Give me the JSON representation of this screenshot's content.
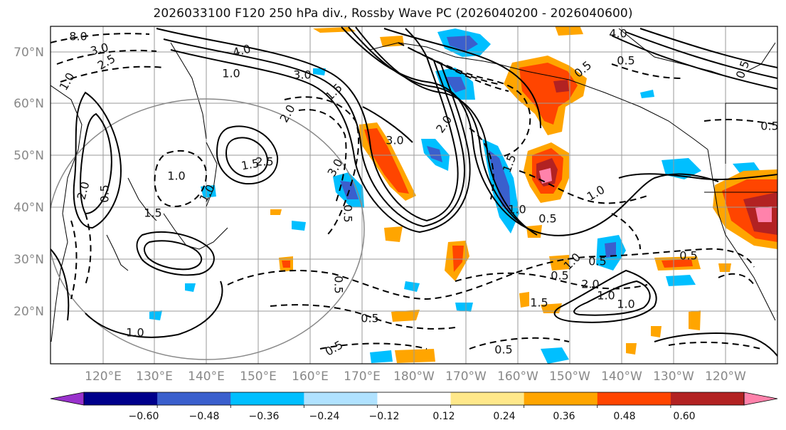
{
  "title": "2026033100 F120 250 hPa div., Rossby Wave PC (2026040200 - 2026040600)",
  "lat_labels": [
    "70°N",
    "60°N",
    "50°N",
    "40°N",
    "30°N",
    "20°N"
  ],
  "lon_labels": [
    "120°E",
    "130°E",
    "140°E",
    "150°E",
    "160°E",
    "170°E",
    "180°W",
    "170°W",
    "160°W",
    "150°W",
    "140°W",
    "130°W",
    "120°W"
  ],
  "colorbar": {
    "colors": [
      "#9932cc",
      "#00008b",
      "#3a5fcd",
      "#00bfff",
      "#b0e2ff",
      "#ffffff",
      "#ffe88a",
      "#ffa500",
      "#ff4500",
      "#b22222",
      "#ff82ab"
    ],
    "tick_labels": [
      "−0.60",
      "−0.48",
      "−0.36",
      "−0.24",
      "−0.12",
      "0.12",
      "0.24",
      "0.36",
      "0.48",
      "0.60"
    ]
  },
  "contour_labels": [
    "8.0",
    "3.0",
    "2.5",
    "1.0",
    "4.0",
    "1.0",
    "3.0",
    "1.5",
    "2.0",
    "2.0",
    "1.5",
    "3.0",
    "2.5",
    "0.5",
    "1.0",
    "2.0",
    "1.0",
    "1.5",
    "0.5",
    "3.0",
    "1.5",
    "1.0",
    "0.5",
    "0.5",
    "0.5",
    "1.0",
    "0.5",
    "1.0",
    "2.0",
    "1.0",
    "1.5",
    "1.0",
    "0.5",
    "0.5",
    "4.0",
    "0.5",
    "0.5",
    "0.5",
    "0.5",
    "1.0",
    "0.5",
    "0.5"
  ]
}
